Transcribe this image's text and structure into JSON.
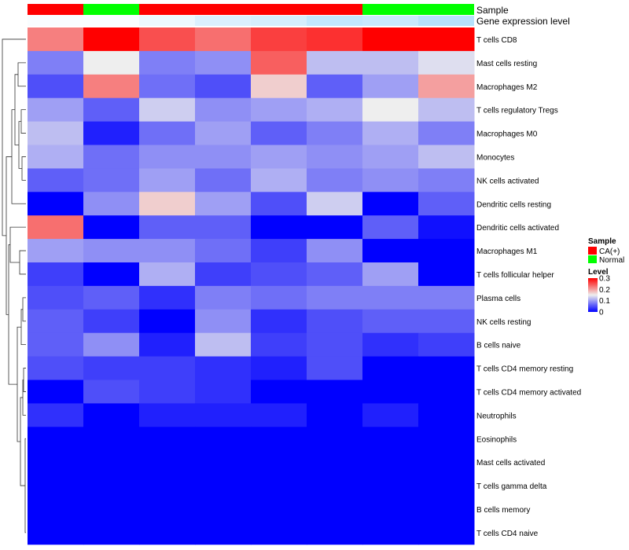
{
  "chart_data": {
    "type": "heatmap",
    "annotation_titles": {
      "sample": "Sample",
      "gene_expression": "Gene expression level"
    },
    "columns": 8,
    "sample_annotation": [
      "CA(+)",
      "Normal",
      "CA(+)",
      "CA(+)",
      "CA(+)",
      "CA(+)",
      "Normal",
      "Normal"
    ],
    "gene_expression_annotation": [
      0.95,
      0.95,
      0.85,
      0.7,
      0.65,
      0.5,
      0.55,
      0.4
    ],
    "rows": [
      "T cells CD8",
      "Mast cells resting",
      "Macrophages M2",
      "T cells regulatory  Tregs",
      "Macrophages M0",
      "Monocytes",
      "NK cells activated",
      "Dendritic cells resting",
      "Dendritic cells activated",
      "Macrophages M1",
      "T cells follicular helper",
      "Plasma cells",
      "NK cells resting",
      "B cells naive",
      "T cells CD4 memory resting",
      "T cells CD4 memory activated",
      "Neutrophils",
      "Eosinophils",
      "Mast cells activated",
      "T cells gamma delta",
      "B cells memory",
      "T cells CD4 naive"
    ],
    "values": [
      [
        0.22,
        0.3,
        0.25,
        0.23,
        0.26,
        0.27,
        0.3,
        0.3
      ],
      [
        0.08,
        0.15,
        0.08,
        0.09,
        0.24,
        0.12,
        0.12,
        0.14
      ],
      [
        0.05,
        0.22,
        0.07,
        0.05,
        0.17,
        0.06,
        0.1,
        0.2
      ],
      [
        0.1,
        0.06,
        0.13,
        0.09,
        0.1,
        0.11,
        0.15,
        0.12
      ],
      [
        0.12,
        0.02,
        0.07,
        0.1,
        0.06,
        0.08,
        0.11,
        0.08
      ],
      [
        0.11,
        0.07,
        0.09,
        0.09,
        0.1,
        0.09,
        0.1,
        0.12
      ],
      [
        0.06,
        0.07,
        0.1,
        0.07,
        0.11,
        0.08,
        0.09,
        0.08
      ],
      [
        0.0,
        0.09,
        0.17,
        0.1,
        0.05,
        0.13,
        0.0,
        0.06
      ],
      [
        0.23,
        0.0,
        0.06,
        0.06,
        0.0,
        0.0,
        0.06,
        0.01
      ],
      [
        0.1,
        0.09,
        0.09,
        0.07,
        0.04,
        0.09,
        0.0,
        0.0
      ],
      [
        0.04,
        0.0,
        0.11,
        0.04,
        0.05,
        0.06,
        0.1,
        0.0
      ],
      [
        0.05,
        0.06,
        0.03,
        0.08,
        0.07,
        0.08,
        0.08,
        0.08
      ],
      [
        0.06,
        0.04,
        0.0,
        0.09,
        0.03,
        0.05,
        0.06,
        0.06
      ],
      [
        0.06,
        0.09,
        0.02,
        0.12,
        0.04,
        0.05,
        0.03,
        0.04
      ],
      [
        0.05,
        0.04,
        0.04,
        0.03,
        0.02,
        0.05,
        0.0,
        0.0
      ],
      [
        0.0,
        0.05,
        0.04,
        0.03,
        0.0,
        0.0,
        0.0,
        0.0
      ],
      [
        0.03,
        0.0,
        0.02,
        0.02,
        0.02,
        0.0,
        0.02,
        0.0
      ],
      [
        0.0,
        0.0,
        0.0,
        0.0,
        0.0,
        0.0,
        0.0,
        0.0
      ],
      [
        0.0,
        0.0,
        0.0,
        0.0,
        0.0,
        0.0,
        0.0,
        0.0
      ],
      [
        0.0,
        0.0,
        0.0,
        0.0,
        0.0,
        0.0,
        0.0,
        0.0
      ],
      [
        0.0,
        0.0,
        0.0,
        0.0,
        0.0,
        0.0,
        0.0,
        0.0
      ],
      [
        0.0,
        0.0,
        0.0,
        0.0,
        0.0,
        0.0,
        0.0,
        0.0
      ]
    ],
    "color_scale": {
      "min": 0,
      "mid": 0.15,
      "max": 0.3,
      "low": "#0000ff",
      "mid_color": "#eeeeee",
      "high": "#ff0000"
    },
    "legend": {
      "sample_title": "Sample",
      "sample_items": [
        {
          "label": "CA(+)",
          "color": "#ff0000"
        },
        {
          "label": "Normal",
          "color": "#00ff00"
        }
      ],
      "level_title": "Level",
      "level_ticks": [
        "0.3",
        "0.2",
        "0.1",
        "0"
      ],
      "level_tick_values": [
        0.3,
        0.2,
        0.1,
        0
      ]
    },
    "sample_colors": {
      "CA(+)": "#ff0000",
      "Normal": "#00ff00"
    },
    "gene_expression_colors": {
      "low": "#87cefa",
      "high": "#ffffff"
    },
    "row_dendrogram": true,
    "column_dendrogram": false
  }
}
